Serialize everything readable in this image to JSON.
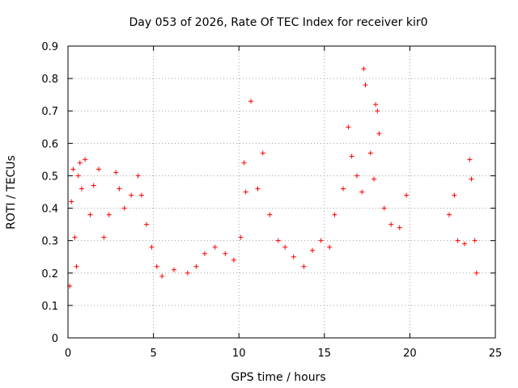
{
  "chart_data": {
    "type": "scatter",
    "title": "Day 053 of 2026, Rate Of TEC Index for receiver kir0",
    "xlabel": "GPS time / hours",
    "ylabel": "ROTI / TECUs",
    "xlim": [
      0,
      25
    ],
    "ylim": [
      0,
      0.9
    ],
    "x_ticks": [
      "0",
      "5",
      "10",
      "15",
      "20",
      "25"
    ],
    "y_ticks": [
      "0",
      "0.1",
      "0.2",
      "0.3",
      "0.4",
      "0.5",
      "0.6",
      "0.7",
      "0.8",
      "0.9"
    ],
    "grid": true,
    "marker": "+",
    "color": "#ff0000",
    "series": [
      {
        "points": [
          [
            0.1,
            0.16
          ],
          [
            0.2,
            0.42
          ],
          [
            0.3,
            0.52
          ],
          [
            0.4,
            0.31
          ],
          [
            0.5,
            0.22
          ],
          [
            0.6,
            0.5
          ],
          [
            0.7,
            0.54
          ],
          [
            0.8,
            0.46
          ],
          [
            1.0,
            0.55
          ],
          [
            1.3,
            0.38
          ],
          [
            1.5,
            0.47
          ],
          [
            1.8,
            0.52
          ],
          [
            2.1,
            0.31
          ],
          [
            2.4,
            0.38
          ],
          [
            2.8,
            0.51
          ],
          [
            3.0,
            0.46
          ],
          [
            3.3,
            0.4
          ],
          [
            3.7,
            0.44
          ],
          [
            4.1,
            0.5
          ],
          [
            4.3,
            0.44
          ],
          [
            4.6,
            0.35
          ],
          [
            4.9,
            0.28
          ],
          [
            5.2,
            0.22
          ],
          [
            5.5,
            0.19
          ],
          [
            6.2,
            0.21
          ],
          [
            7.0,
            0.2
          ],
          [
            7.5,
            0.22
          ],
          [
            8.0,
            0.26
          ],
          [
            8.6,
            0.28
          ],
          [
            9.2,
            0.26
          ],
          [
            9.7,
            0.24
          ],
          [
            10.1,
            0.31
          ],
          [
            10.3,
            0.54
          ],
          [
            10.4,
            0.45
          ],
          [
            10.7,
            0.73
          ],
          [
            11.1,
            0.46
          ],
          [
            11.4,
            0.57
          ],
          [
            11.8,
            0.38
          ],
          [
            12.3,
            0.3
          ],
          [
            12.7,
            0.28
          ],
          [
            13.2,
            0.25
          ],
          [
            13.8,
            0.22
          ],
          [
            14.3,
            0.27
          ],
          [
            14.8,
            0.3
          ],
          [
            15.3,
            0.28
          ],
          [
            15.6,
            0.38
          ],
          [
            16.1,
            0.46
          ],
          [
            16.4,
            0.65
          ],
          [
            16.6,
            0.56
          ],
          [
            16.9,
            0.5
          ],
          [
            17.2,
            0.45
          ],
          [
            17.3,
            0.83
          ],
          [
            17.4,
            0.78
          ],
          [
            17.7,
            0.57
          ],
          [
            17.9,
            0.49
          ],
          [
            18.0,
            0.72
          ],
          [
            18.1,
            0.7
          ],
          [
            18.2,
            0.63
          ],
          [
            18.5,
            0.4
          ],
          [
            18.9,
            0.35
          ],
          [
            19.4,
            0.34
          ],
          [
            19.8,
            0.44
          ],
          [
            22.3,
            0.38
          ],
          [
            22.6,
            0.44
          ],
          [
            22.8,
            0.3
          ],
          [
            23.2,
            0.29
          ],
          [
            23.5,
            0.55
          ],
          [
            23.6,
            0.49
          ],
          [
            23.8,
            0.3
          ],
          [
            23.9,
            0.2
          ]
        ]
      }
    ]
  }
}
